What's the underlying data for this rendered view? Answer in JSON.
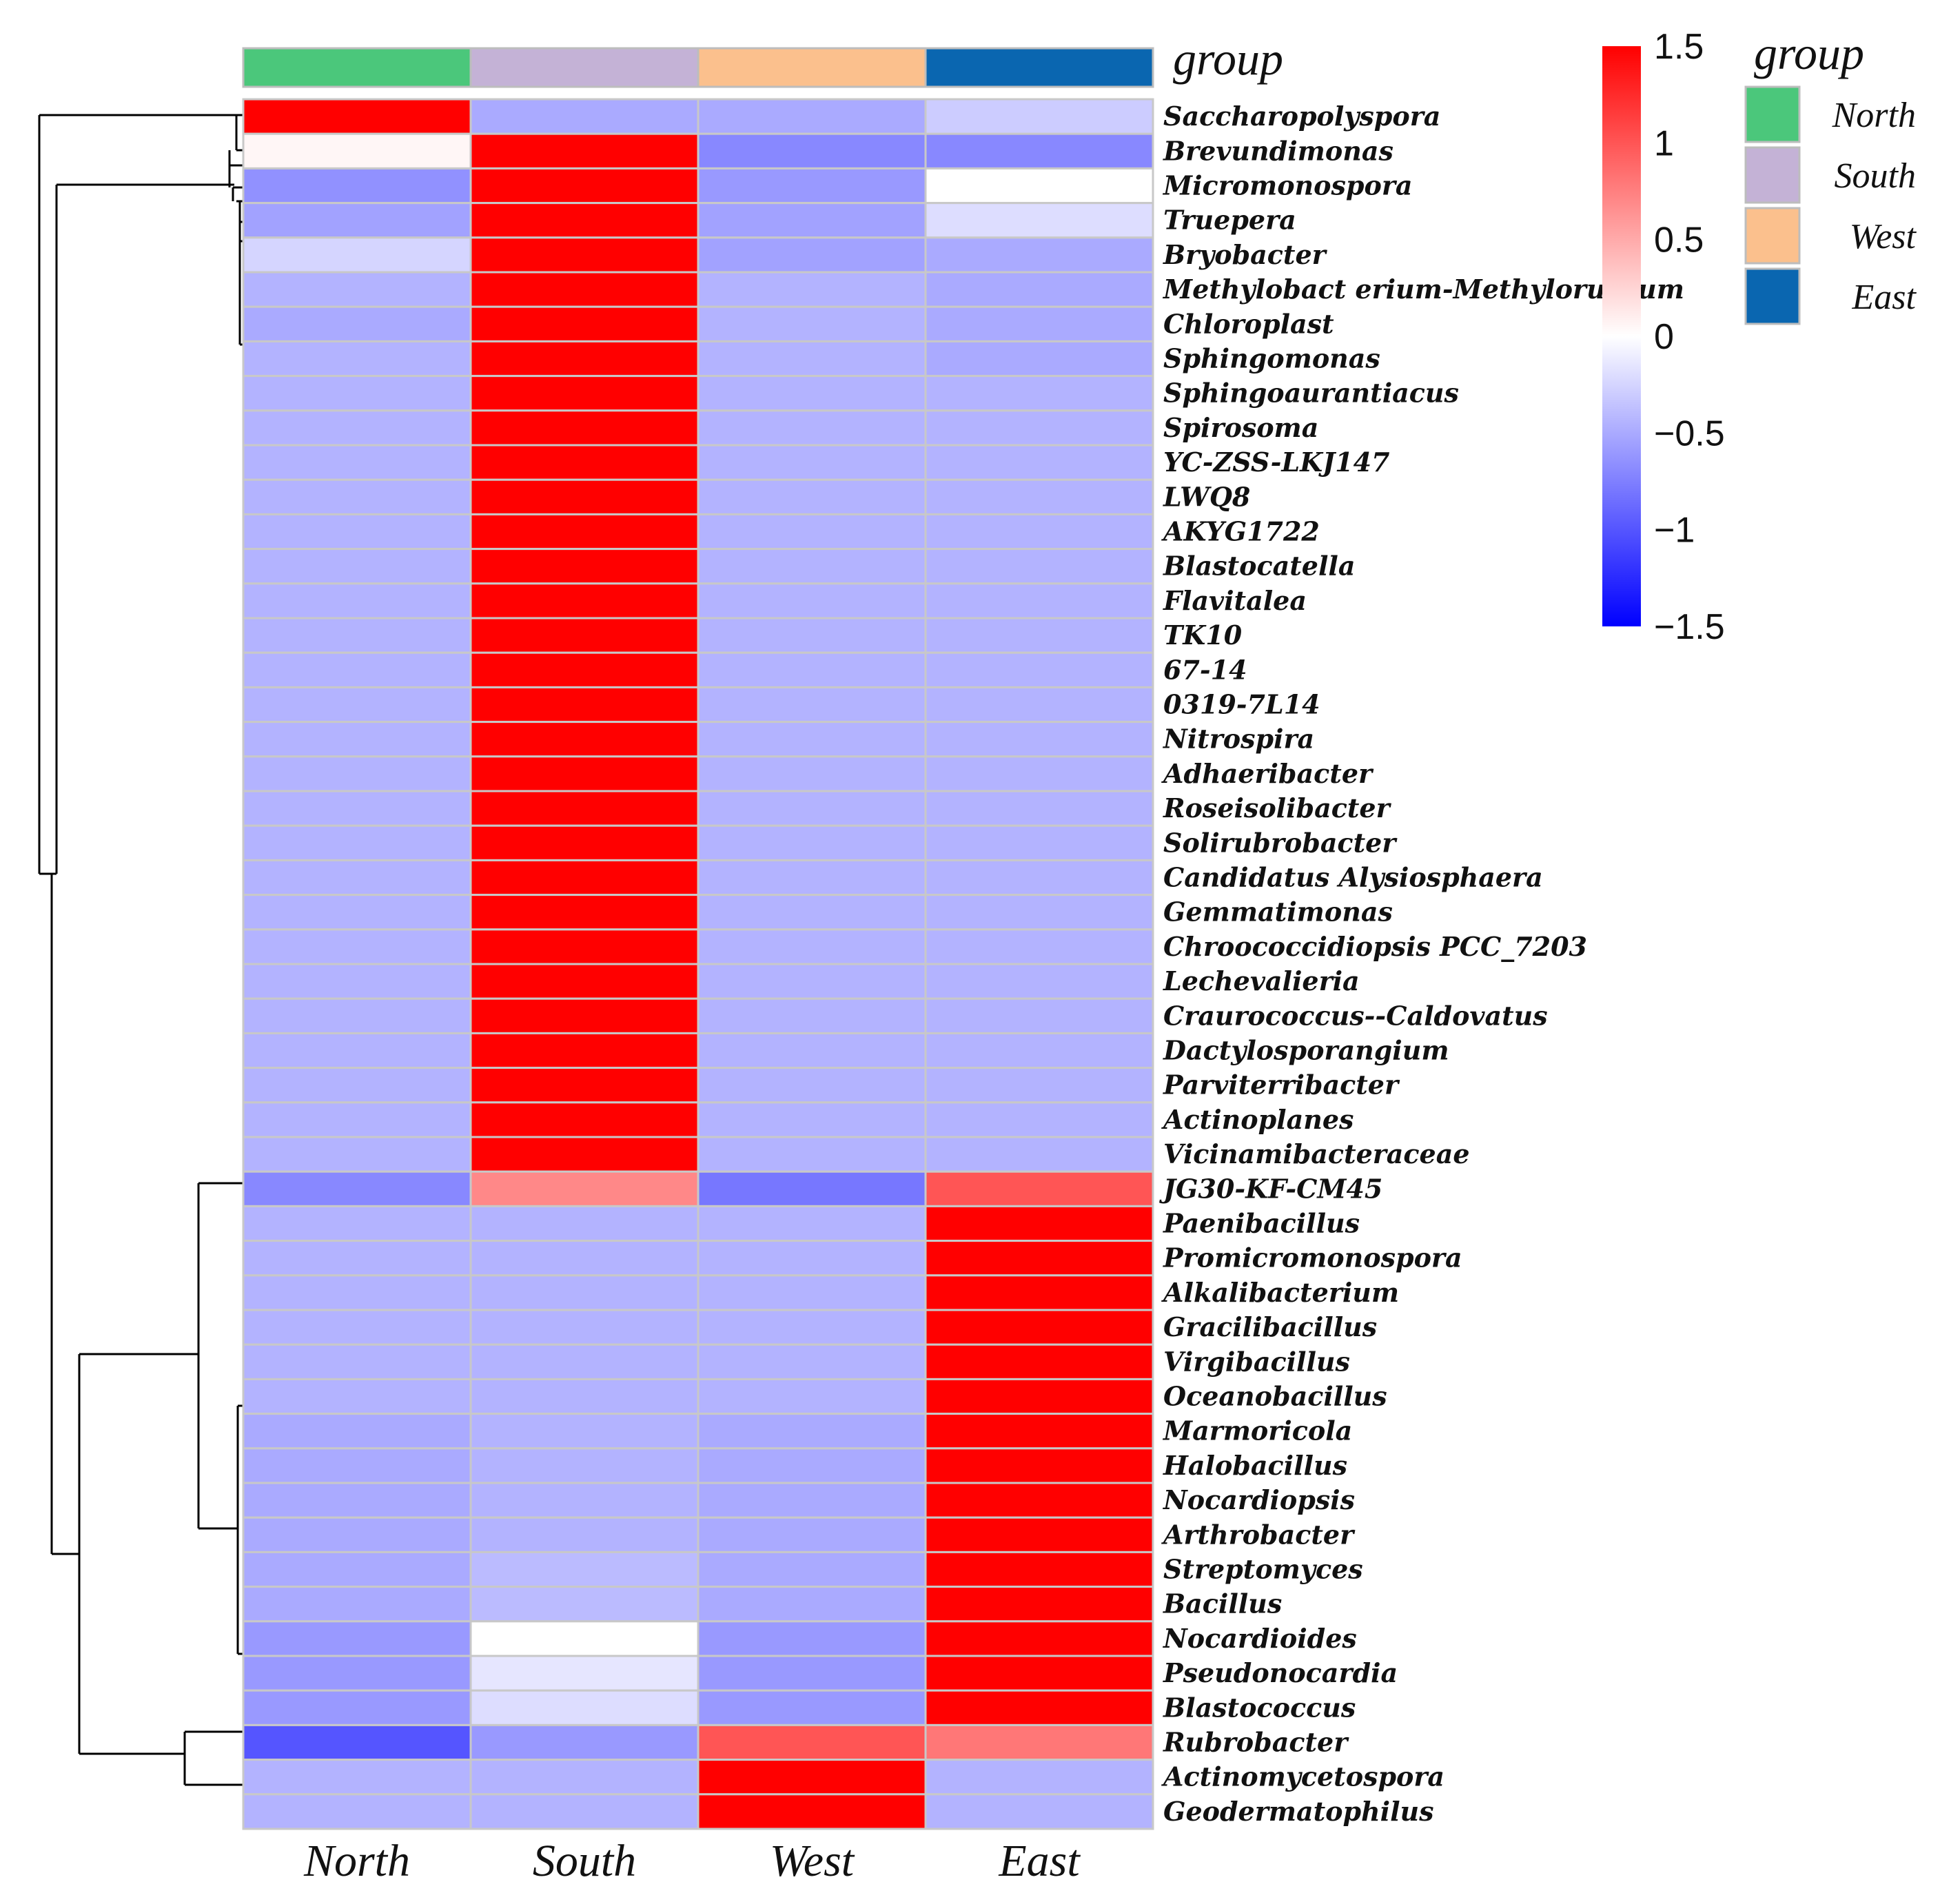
{
  "chart_data": {
    "type": "heatmap",
    "title": "",
    "columns": [
      "North",
      "South",
      "West",
      "East"
    ],
    "group_annotation": {
      "title": "group",
      "legend_title": "group",
      "groups": [
        {
          "name": "North",
          "color": "#4BC77B"
        },
        {
          "name": "South",
          "color": "#C4B2D6"
        },
        {
          "name": "West",
          "color": "#FBC08D"
        },
        {
          "name": "East",
          "color": "#0A66B0"
        }
      ]
    },
    "color_scale": {
      "min": -1.5,
      "max": 1.5,
      "low_color": "#0000FF",
      "mid_color": "#FFFFFF",
      "high_color": "#FF0000",
      "ticks": [
        "1.5",
        "1",
        "0.5",
        "0",
        "−0.5",
        "−1",
        "−1.5"
      ],
      "tick_values": [
        1.5,
        1,
        0.5,
        0,
        -0.5,
        -1,
        -1.5
      ]
    },
    "rows": [
      {
        "name": "Saccharopolyspora",
        "values": [
          1.5,
          -0.5,
          -0.5,
          -0.3
        ]
      },
      {
        "name": "Brevundimonas",
        "values": [
          0.05,
          1.5,
          -0.7,
          -0.7
        ]
      },
      {
        "name": "Micromonospora",
        "values": [
          -0.65,
          1.5,
          -0.6,
          0.0
        ]
      },
      {
        "name": "Truepera",
        "values": [
          -0.55,
          1.5,
          -0.55,
          -0.2
        ]
      },
      {
        "name": "Bryobacter",
        "values": [
          -0.25,
          1.5,
          -0.55,
          -0.5
        ]
      },
      {
        "name": "Methylobact erium-Methylorubrum",
        "values": [
          -0.45,
          1.5,
          -0.45,
          -0.5
        ]
      },
      {
        "name": "Chloroplast",
        "values": [
          -0.5,
          1.5,
          -0.45,
          -0.5
        ]
      },
      {
        "name": "Sphingomonas",
        "values": [
          -0.45,
          1.5,
          -0.45,
          -0.5
        ]
      },
      {
        "name": "Sphingoaurantiacus",
        "values": [
          -0.45,
          1.5,
          -0.45,
          -0.45
        ]
      },
      {
        "name": "Spirosoma",
        "values": [
          -0.45,
          1.5,
          -0.45,
          -0.45
        ]
      },
      {
        "name": "YC-ZSS-LKJ147",
        "values": [
          -0.45,
          1.5,
          -0.45,
          -0.45
        ]
      },
      {
        "name": "LWQ8",
        "values": [
          -0.45,
          1.5,
          -0.45,
          -0.45
        ]
      },
      {
        "name": "AKYG1722",
        "values": [
          -0.45,
          1.5,
          -0.45,
          -0.45
        ]
      },
      {
        "name": "Blastocatella",
        "values": [
          -0.45,
          1.5,
          -0.45,
          -0.45
        ]
      },
      {
        "name": "Flavitalea",
        "values": [
          -0.45,
          1.5,
          -0.45,
          -0.45
        ]
      },
      {
        "name": "TK10",
        "values": [
          -0.45,
          1.5,
          -0.45,
          -0.45
        ]
      },
      {
        "name": "67-14",
        "values": [
          -0.45,
          1.5,
          -0.45,
          -0.45
        ]
      },
      {
        "name": "0319-7L14",
        "values": [
          -0.45,
          1.5,
          -0.45,
          -0.45
        ]
      },
      {
        "name": "Nitrospira",
        "values": [
          -0.45,
          1.5,
          -0.45,
          -0.45
        ]
      },
      {
        "name": "Adhaeribacter",
        "values": [
          -0.45,
          1.5,
          -0.45,
          -0.45
        ]
      },
      {
        "name": "Roseisolibacter",
        "values": [
          -0.45,
          1.5,
          -0.45,
          -0.45
        ]
      },
      {
        "name": "Solirubrobacter",
        "values": [
          -0.45,
          1.5,
          -0.45,
          -0.45
        ]
      },
      {
        "name": "Candidatus Alysiosphaera",
        "values": [
          -0.45,
          1.5,
          -0.45,
          -0.45
        ]
      },
      {
        "name": "Gemmatimonas",
        "values": [
          -0.45,
          1.5,
          -0.45,
          -0.45
        ]
      },
      {
        "name": "Chroococcidiopsis PCC_7203",
        "values": [
          -0.45,
          1.5,
          -0.45,
          -0.45
        ]
      },
      {
        "name": "Lechevalieria",
        "values": [
          -0.45,
          1.5,
          -0.45,
          -0.45
        ]
      },
      {
        "name": "Craurococcus--Caldovatus",
        "values": [
          -0.45,
          1.5,
          -0.45,
          -0.45
        ]
      },
      {
        "name": "Dactylosporangium",
        "values": [
          -0.45,
          1.5,
          -0.45,
          -0.45
        ]
      },
      {
        "name": "Parviterribacter",
        "values": [
          -0.45,
          1.5,
          -0.45,
          -0.45
        ]
      },
      {
        "name": "Actinoplanes",
        "values": [
          -0.45,
          1.5,
          -0.45,
          -0.45
        ]
      },
      {
        "name": "Vicinamibacteraceae",
        "values": [
          -0.45,
          1.5,
          -0.45,
          -0.45
        ]
      },
      {
        "name": "JG30-KF-CM45",
        "values": [
          -0.7,
          0.7,
          -0.8,
          1.0
        ]
      },
      {
        "name": "Paenibacillus",
        "values": [
          -0.45,
          -0.45,
          -0.45,
          1.5
        ]
      },
      {
        "name": "Promicromonospora",
        "values": [
          -0.45,
          -0.45,
          -0.45,
          1.5
        ]
      },
      {
        "name": "Alkalibacterium",
        "values": [
          -0.45,
          -0.45,
          -0.45,
          1.5
        ]
      },
      {
        "name": "Gracilibacillus",
        "values": [
          -0.45,
          -0.45,
          -0.45,
          1.5
        ]
      },
      {
        "name": "Virgibacillus",
        "values": [
          -0.45,
          -0.45,
          -0.45,
          1.5
        ]
      },
      {
        "name": "Oceanobacillus",
        "values": [
          -0.45,
          -0.45,
          -0.45,
          1.5
        ]
      },
      {
        "name": "Marmoricola",
        "values": [
          -0.5,
          -0.45,
          -0.5,
          1.5
        ]
      },
      {
        "name": "Halobacillus",
        "values": [
          -0.5,
          -0.45,
          -0.5,
          1.5
        ]
      },
      {
        "name": "Nocardiopsis",
        "values": [
          -0.5,
          -0.45,
          -0.5,
          1.5
        ]
      },
      {
        "name": "Arthrobacter",
        "values": [
          -0.5,
          -0.45,
          -0.5,
          1.5
        ]
      },
      {
        "name": "Streptomyces",
        "values": [
          -0.5,
          -0.4,
          -0.5,
          1.5
        ]
      },
      {
        "name": "Bacillus",
        "values": [
          -0.5,
          -0.4,
          -0.5,
          1.5
        ]
      },
      {
        "name": "Nocardioides",
        "values": [
          -0.6,
          0.0,
          -0.6,
          1.5
        ]
      },
      {
        "name": "Pseudonocardia",
        "values": [
          -0.6,
          -0.15,
          -0.6,
          1.5
        ]
      },
      {
        "name": "Blastococcus",
        "values": [
          -0.6,
          -0.2,
          -0.6,
          1.5
        ]
      },
      {
        "name": "Rubrobacter",
        "values": [
          -1.0,
          -0.6,
          1.0,
          0.8
        ]
      },
      {
        "name": "Actinomycetospora",
        "values": [
          -0.45,
          -0.45,
          1.5,
          -0.45
        ]
      },
      {
        "name": "Geodermatophilus",
        "values": [
          -0.45,
          -0.45,
          1.5,
          -0.45
        ]
      }
    ]
  }
}
